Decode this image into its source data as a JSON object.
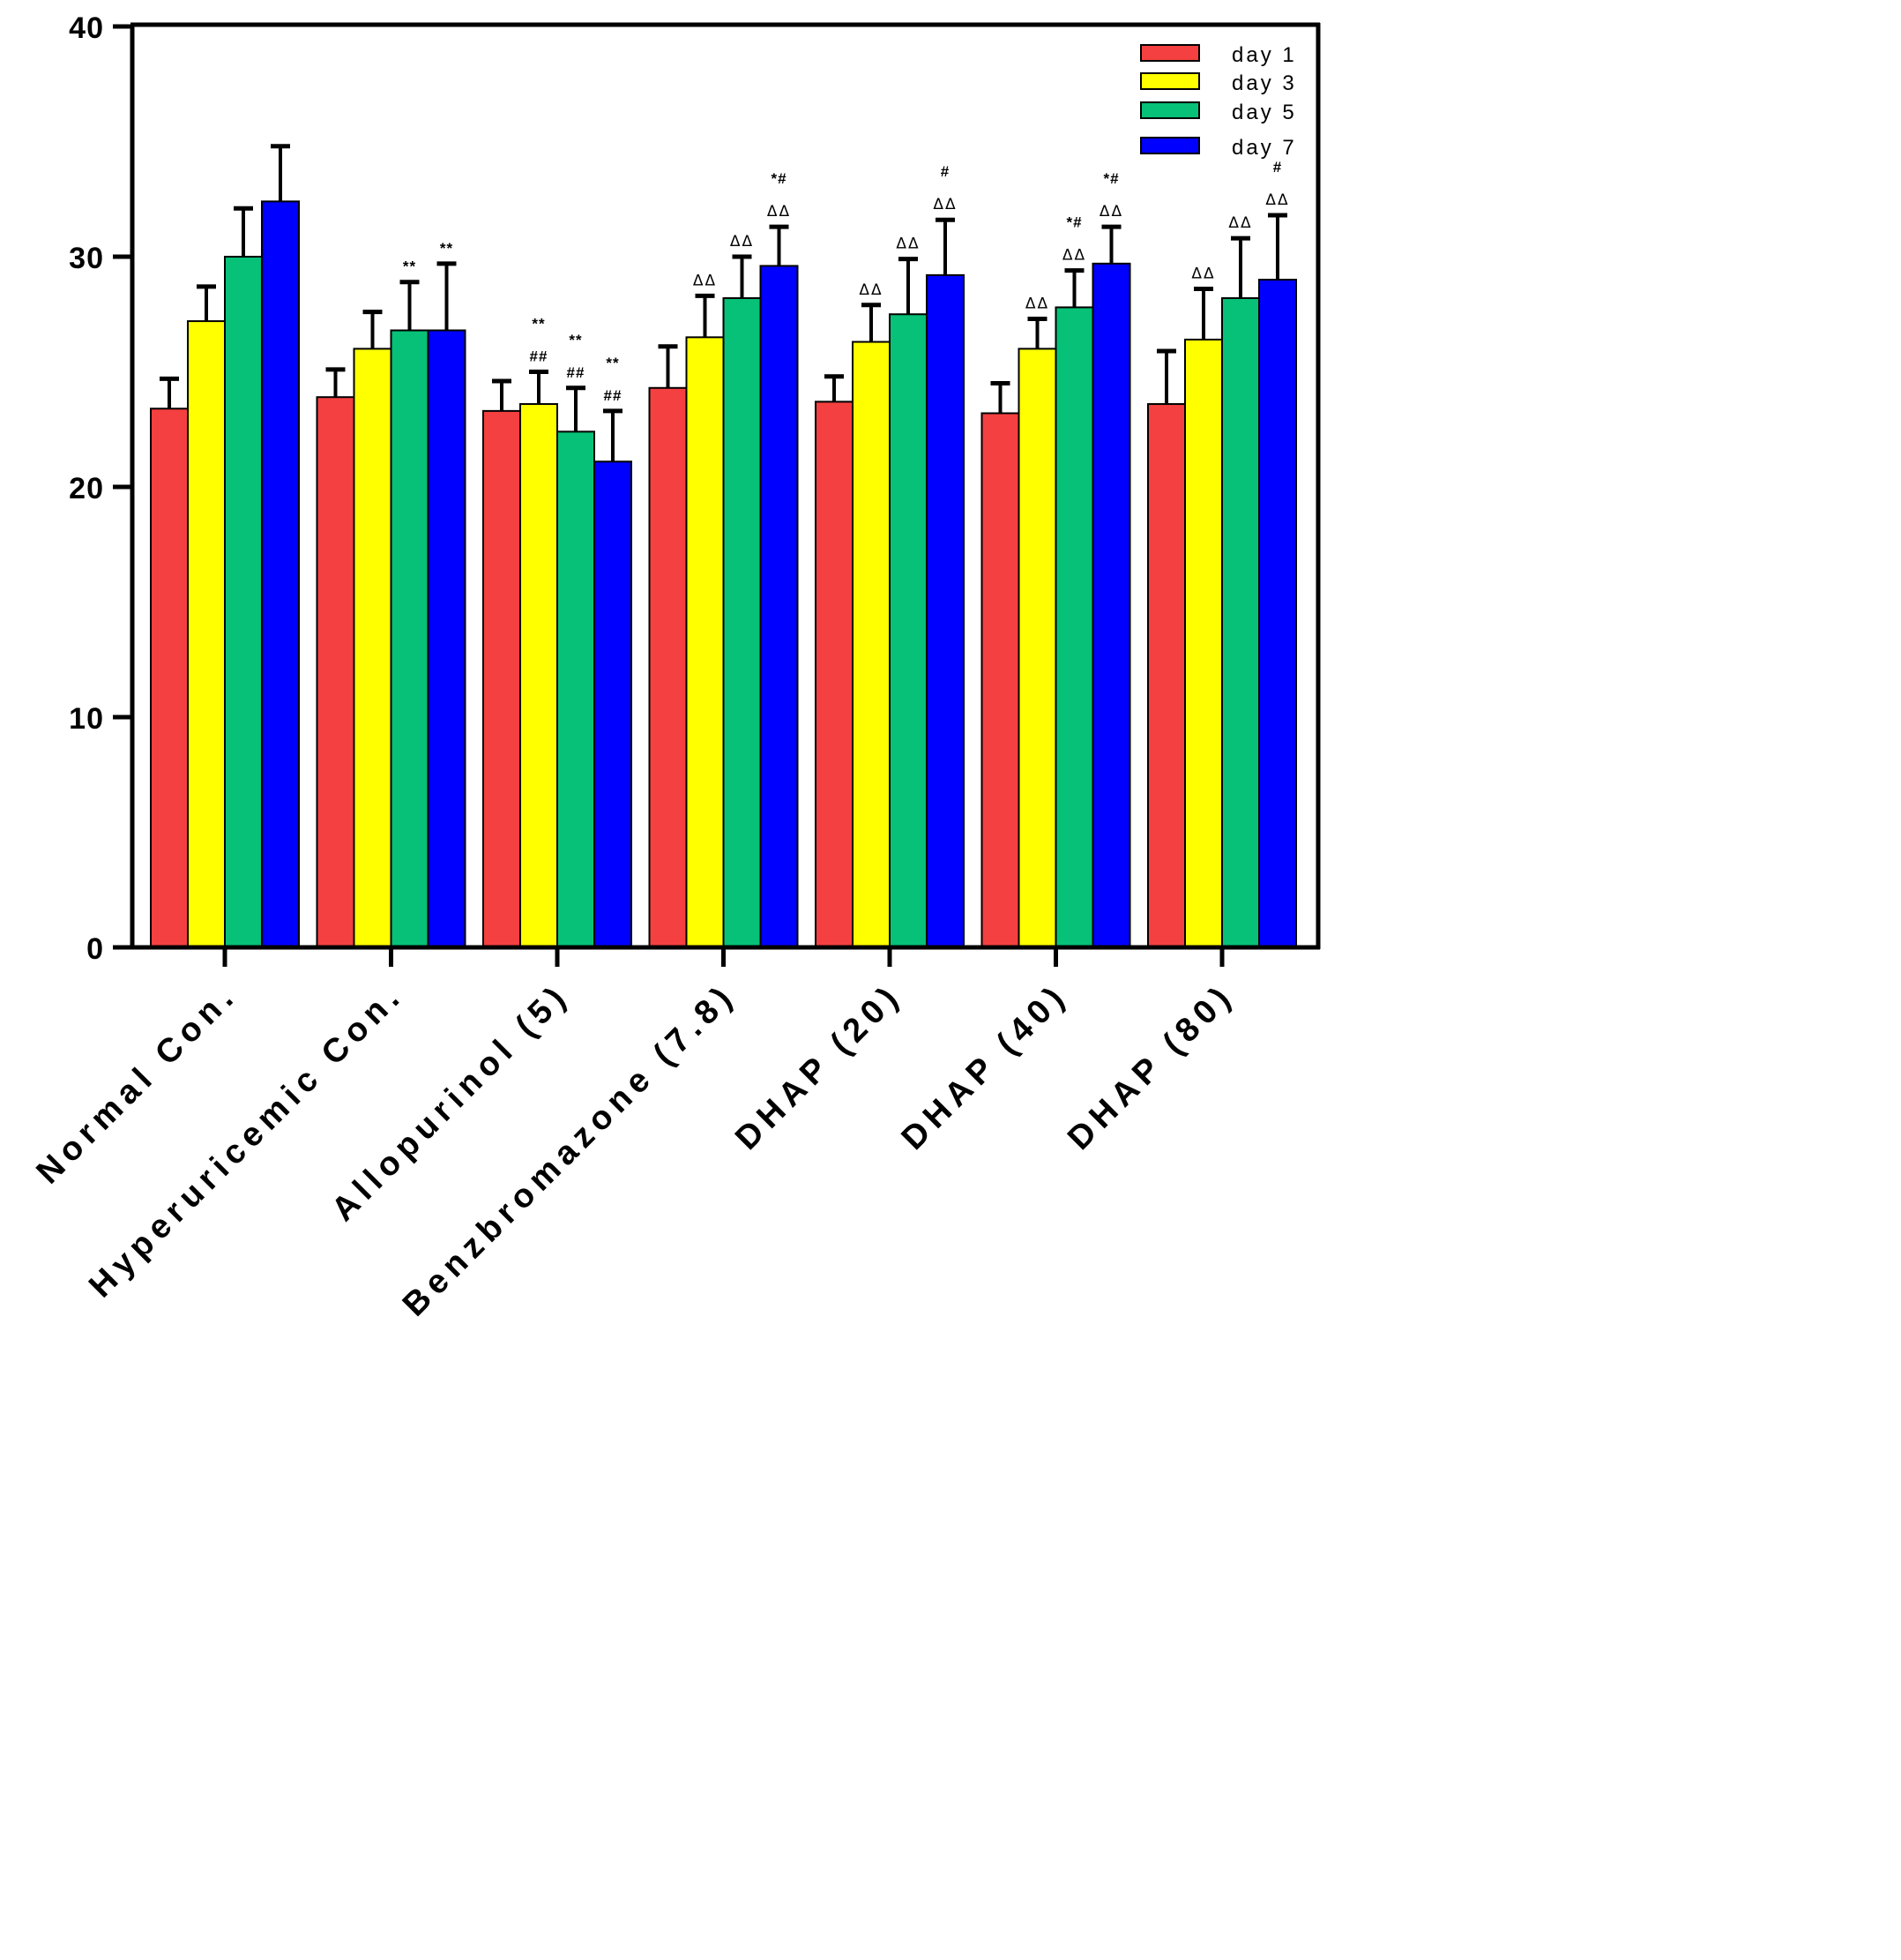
{
  "chart_data": {
    "type": "bar",
    "title": "",
    "xlabel": "",
    "ylabel": "",
    "ylim": [
      0,
      40
    ],
    "yticks": [
      0,
      10,
      20,
      30,
      40
    ],
    "legend_position": "top-right",
    "grid": false,
    "categories": [
      "Normal Con.",
      "Hyperuricemic Con.",
      "Allopurinol (5)",
      "Benzbromazone (7.8)",
      "DHAP (20)",
      "DHAP (40)",
      "DHAP (80)"
    ],
    "series": [
      {
        "name": "day 1",
        "color": "#f44040",
        "values": [
          23.4,
          23.9,
          23.3,
          24.3,
          23.7,
          23.2,
          23.6
        ],
        "errors": [
          1.3,
          1.2,
          1.3,
          1.8,
          1.1,
          1.3,
          2.3
        ]
      },
      {
        "name": "day 3",
        "color": "#ffff00",
        "values": [
          27.2,
          26.0,
          23.6,
          26.5,
          26.3,
          26.0,
          26.4
        ],
        "errors": [
          1.5,
          1.6,
          1.4,
          1.8,
          1.6,
          1.3,
          2.2
        ]
      },
      {
        "name": "day 5",
        "color": "#06c177",
        "values": [
          30.0,
          26.8,
          22.4,
          28.2,
          27.5,
          27.8,
          28.2
        ],
        "errors": [
          2.1,
          2.1,
          1.9,
          1.8,
          2.4,
          1.6,
          2.6
        ]
      },
      {
        "name": "day 7",
        "color": "#0000ff",
        "values": [
          32.4,
          26.8,
          21.1,
          29.6,
          29.2,
          29.7,
          29.0
        ],
        "errors": [
          2.4,
          2.9,
          2.2,
          1.7,
          2.4,
          1.6,
          2.8
        ]
      }
    ],
    "annotations": [
      {
        "category": 1,
        "series": 2,
        "lines": [
          "**"
        ]
      },
      {
        "category": 1,
        "series": 3,
        "lines": [
          "**"
        ]
      },
      {
        "category": 2,
        "series": 1,
        "lines": [
          "**",
          "##"
        ]
      },
      {
        "category": 2,
        "series": 2,
        "lines": [
          "**",
          "##"
        ]
      },
      {
        "category": 2,
        "series": 3,
        "lines": [
          "**",
          "##"
        ]
      },
      {
        "category": 3,
        "series": 1,
        "lines": [
          "ΔΔ"
        ]
      },
      {
        "category": 3,
        "series": 2,
        "lines": [
          "ΔΔ"
        ]
      },
      {
        "category": 3,
        "series": 3,
        "lines": [
          "*#",
          "ΔΔ"
        ]
      },
      {
        "category": 4,
        "series": 1,
        "lines": [
          "ΔΔ"
        ]
      },
      {
        "category": 4,
        "series": 2,
        "lines": [
          "ΔΔ"
        ]
      },
      {
        "category": 4,
        "series": 3,
        "lines": [
          "#",
          "ΔΔ"
        ]
      },
      {
        "category": 5,
        "series": 1,
        "lines": [
          "ΔΔ"
        ]
      },
      {
        "category": 5,
        "series": 2,
        "lines": [
          "*#",
          "ΔΔ"
        ]
      },
      {
        "category": 5,
        "series": 3,
        "lines": [
          "*#",
          "ΔΔ"
        ]
      },
      {
        "category": 6,
        "series": 1,
        "lines": [
          "ΔΔ"
        ]
      },
      {
        "category": 6,
        "series": 2,
        "lines": [
          "ΔΔ"
        ]
      },
      {
        "category": 6,
        "series": 3,
        "lines": [
          "#",
          "ΔΔ"
        ]
      }
    ]
  }
}
